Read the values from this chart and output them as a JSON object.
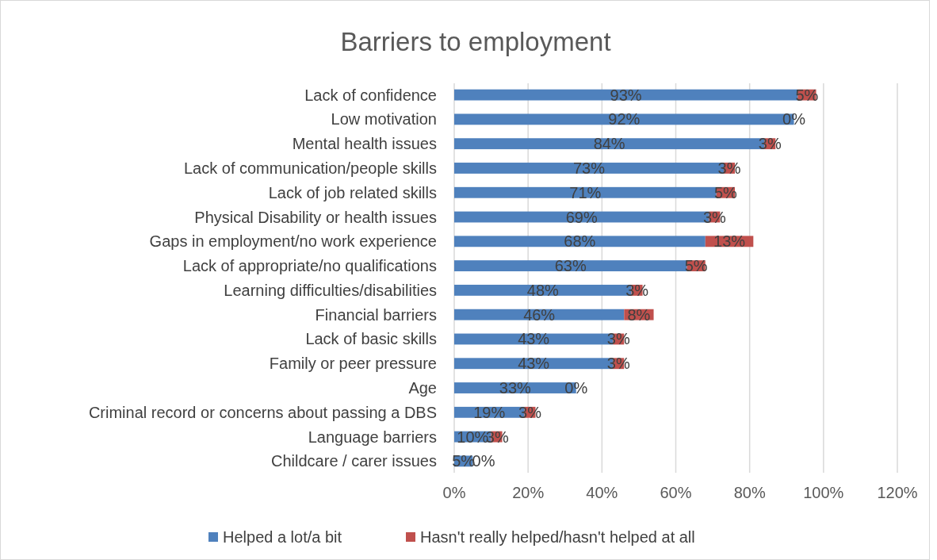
{
  "chart_data": {
    "type": "bar",
    "orientation": "horizontal",
    "stacked": true,
    "title": "Barriers to employment",
    "categories": [
      "Lack of confidence",
      "Low motivation",
      "Mental health issues",
      "Lack of communication/people skills",
      "Lack of job related skills",
      "Physical Disability or health issues",
      "Gaps in employment/no work experience",
      "Lack of appropriate/no qualifications",
      "Learning difficulties/disabilities",
      "Financial barriers",
      "Lack of basic skills",
      "Family or peer pressure",
      "Age",
      "Criminal record or concerns about passing a DBS",
      "Language barriers",
      "Childcare / carer issues"
    ],
    "series": [
      {
        "name": "Helped a lot/a bit",
        "color": "#4f81bd",
        "values": [
          93,
          92,
          84,
          73,
          71,
          69,
          68,
          63,
          48,
          46,
          43,
          43,
          33,
          19,
          10,
          5
        ],
        "value_labels": [
          "93%",
          "92%",
          "84%",
          "73%",
          "71%",
          "69%",
          "68%",
          "63%",
          "48%",
          "46%",
          "43%",
          "43%",
          "33%",
          "19%",
          "10%",
          "5%"
        ]
      },
      {
        "name": "Hasn't really helped/hasn't helped at all",
        "color": "#c0504d",
        "values": [
          5,
          0,
          3,
          3,
          5,
          3,
          13,
          5,
          3,
          8,
          3,
          3,
          0,
          3,
          3,
          0
        ],
        "value_labels": [
          "5%",
          "0%",
          "3%",
          "3%",
          "5%",
          "3%",
          "13%",
          "5%",
          "3%",
          "8%",
          "3%",
          "3%",
          "0%",
          "3%",
          "3%",
          "0%"
        ]
      }
    ],
    "xlim": [
      0,
      120
    ],
    "xticks": [
      {
        "value": 0,
        "label": "0%"
      },
      {
        "value": 20,
        "label": "20%"
      },
      {
        "value": 40,
        "label": "40%"
      },
      {
        "value": 60,
        "label": "60%"
      },
      {
        "value": 80,
        "label": "80%"
      },
      {
        "value": 100,
        "label": "100%"
      },
      {
        "value": 120,
        "label": "120%"
      }
    ],
    "grid": "x",
    "legend": "bottom"
  }
}
